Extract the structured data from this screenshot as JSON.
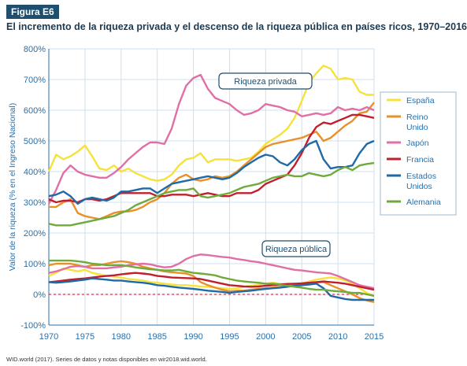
{
  "figure_label": "Figura E6",
  "title": "El incremento de la riqueza privada y el descenso de la riqueza pública en países ricos, 1970–2016",
  "source": "WID.world (2017). Series de datos y notas disponibles en wir2018.wid.world.",
  "chart_data": {
    "type": "line",
    "ylabel": "Valor de la riqueza (% en el Ingreso Nacional)",
    "xlim": [
      1970,
      2015
    ],
    "ylim": [
      -100,
      800
    ],
    "x_ticks": [
      "1970",
      "1975",
      "1980",
      "1985",
      "1990",
      "1995",
      "2000",
      "2005",
      "2010",
      "2015"
    ],
    "y_ticks": [
      "-100%",
      "0%",
      "100%",
      "200%",
      "300%",
      "400%",
      "500%",
      "600%",
      "700%",
      "800%"
    ],
    "grid": true,
    "annotations": [
      "Riqueza privada",
      "Riqueza pública"
    ],
    "legend_position": "right",
    "years": [
      1970,
      1971,
      1972,
      1973,
      1974,
      1975,
      1976,
      1977,
      1978,
      1979,
      1980,
      1981,
      1982,
      1983,
      1984,
      1985,
      1986,
      1987,
      1988,
      1989,
      1990,
      1991,
      1992,
      1993,
      1994,
      1995,
      1996,
      1997,
      1998,
      1999,
      2000,
      2001,
      2002,
      2003,
      2004,
      2005,
      2006,
      2007,
      2008,
      2009,
      2010,
      2011,
      2012,
      2013,
      2014,
      2015
    ],
    "series": [
      {
        "name": "España",
        "color": "#f5e23c",
        "private": [
          400,
          455,
          440,
          450,
          465,
          485,
          450,
          410,
          405,
          420,
          400,
          410,
          395,
          385,
          375,
          370,
          375,
          390,
          420,
          440,
          445,
          460,
          430,
          440,
          440,
          440,
          435,
          440,
          445,
          465,
          490,
          505,
          520,
          540,
          575,
          630,
          690,
          720,
          745,
          735,
          700,
          705,
          700,
          660,
          650,
          650
        ],
        "public": [
          60,
          70,
          85,
          80,
          75,
          80,
          70,
          65,
          60,
          58,
          55,
          50,
          48,
          45,
          40,
          38,
          35,
          32,
          30,
          30,
          28,
          26,
          25,
          22,
          20,
          18,
          20,
          25,
          28,
          32,
          35,
          38,
          35,
          32,
          32,
          35,
          42,
          48,
          52,
          55,
          52,
          45,
          35,
          20,
          5,
          -5
        ]
      },
      {
        "name": "Reino Unido",
        "color": "#e8902a",
        "private": [
          285,
          285,
          300,
          310,
          265,
          255,
          250,
          245,
          255,
          265,
          270,
          270,
          275,
          285,
          300,
          310,
          330,
          360,
          380,
          390,
          375,
          370,
          375,
          385,
          380,
          385,
          400,
          420,
          440,
          460,
          480,
          490,
          495,
          500,
          505,
          510,
          520,
          530,
          500,
          510,
          530,
          550,
          565,
          590,
          595,
          625
        ],
        "public": [
          95,
          100,
          100,
          100,
          95,
          90,
          95,
          95,
          100,
          105,
          108,
          105,
          100,
          90,
          85,
          80,
          75,
          72,
          70,
          68,
          60,
          40,
          30,
          22,
          15,
          10,
          12,
          12,
          15,
          18,
          20,
          22,
          25,
          30,
          32,
          35,
          38,
          38,
          40,
          30,
          20,
          10,
          0,
          -12,
          -20,
          -25
        ]
      },
      {
        "name": "Japón",
        "color": "#e06fa5",
        "private": [
          295,
          340,
          395,
          420,
          400,
          390,
          385,
          380,
          380,
          395,
          415,
          440,
          460,
          480,
          495,
          495,
          490,
          540,
          620,
          680,
          705,
          715,
          670,
          640,
          630,
          620,
          600,
          585,
          590,
          600,
          620,
          615,
          610,
          600,
          595,
          580,
          585,
          590,
          585,
          590,
          610,
          600,
          605,
          600,
          610,
          600
        ],
        "public": [
          70,
          75,
          82,
          90,
          92,
          90,
          85,
          85,
          85,
          88,
          90,
          95,
          98,
          100,
          98,
          92,
          88,
          90,
          100,
          115,
          125,
          130,
          128,
          125,
          122,
          120,
          115,
          112,
          108,
          105,
          100,
          95,
          90,
          85,
          80,
          78,
          75,
          72,
          70,
          68,
          60,
          50,
          40,
          30,
          25,
          20
        ]
      },
      {
        "name": "Francia",
        "color": "#c0202e",
        "private": [
          310,
          300,
          305,
          305,
          300,
          310,
          310,
          305,
          310,
          320,
          330,
          330,
          330,
          330,
          330,
          320,
          320,
          325,
          325,
          325,
          320,
          325,
          330,
          325,
          320,
          320,
          330,
          330,
          330,
          340,
          360,
          370,
          380,
          390,
          420,
          460,
          510,
          545,
          560,
          555,
          565,
          575,
          585,
          585,
          580,
          575
        ],
        "public": [
          40,
          42,
          45,
          48,
          50,
          52,
          55,
          58,
          60,
          62,
          65,
          68,
          70,
          68,
          65,
          60,
          58,
          55,
          54,
          53,
          52,
          50,
          45,
          40,
          35,
          30,
          28,
          26,
          25,
          26,
          28,
          30,
          32,
          34,
          35,
          36,
          38,
          40,
          42,
          40,
          38,
          35,
          30,
          25,
          20,
          15
        ]
      },
      {
        "name": "Estados Unidos",
        "color": "#1f6aa6",
        "private": [
          320,
          325,
          335,
          320,
          295,
          310,
          315,
          310,
          305,
          315,
          335,
          335,
          340,
          345,
          345,
          330,
          345,
          360,
          365,
          370,
          375,
          380,
          385,
          380,
          375,
          380,
          395,
          415,
          430,
          445,
          455,
          450,
          430,
          420,
          440,
          470,
          490,
          500,
          440,
          410,
          415,
          415,
          420,
          460,
          490,
          500
        ],
        "public": [
          40,
          38,
          40,
          42,
          45,
          48,
          52,
          50,
          48,
          45,
          45,
          42,
          40,
          38,
          35,
          30,
          28,
          25,
          22,
          20,
          18,
          15,
          12,
          10,
          8,
          5,
          8,
          10,
          12,
          15,
          18,
          20,
          22,
          25,
          28,
          30,
          32,
          35,
          20,
          -5,
          -10,
          -15,
          -18,
          -18,
          -18,
          -18
        ]
      },
      {
        "name": "Alemania",
        "color": "#6faa3c",
        "private": [
          230,
          225,
          225,
          225,
          230,
          235,
          240,
          245,
          250,
          255,
          265,
          275,
          290,
          300,
          310,
          320,
          330,
          335,
          340,
          340,
          345,
          320,
          315,
          320,
          325,
          330,
          340,
          350,
          355,
          360,
          370,
          380,
          385,
          390,
          385,
          385,
          395,
          390,
          385,
          390,
          405,
          415,
          405,
          420,
          425,
          428
        ],
        "public": [
          110,
          110,
          110,
          110,
          108,
          105,
          100,
          98,
          95,
          95,
          95,
          92,
          88,
          85,
          82,
          80,
          78,
          78,
          80,
          75,
          70,
          68,
          65,
          62,
          55,
          50,
          45,
          42,
          40,
          38,
          35,
          35,
          32,
          28,
          25,
          22,
          18,
          15,
          15,
          12,
          10,
          8,
          5,
          5,
          0,
          -5
        ]
      }
    ]
  }
}
